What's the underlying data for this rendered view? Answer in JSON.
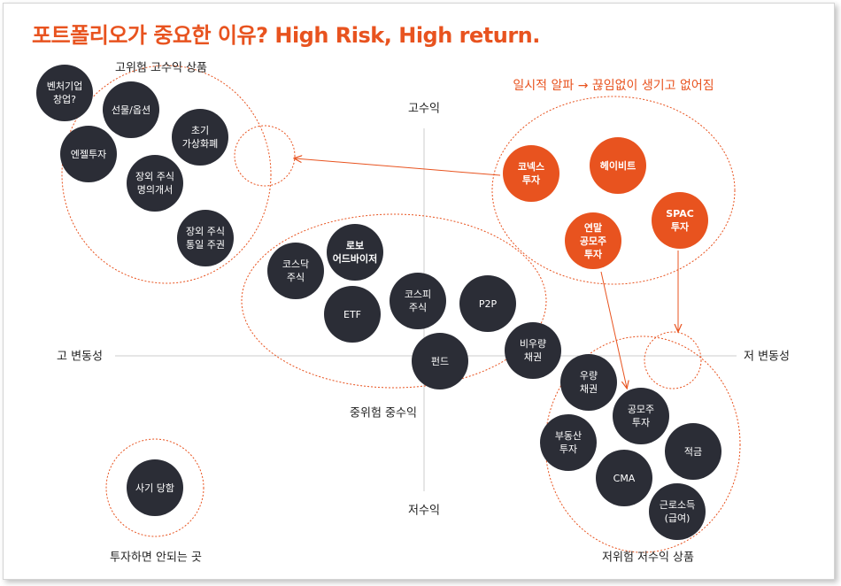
{
  "title": "포트폴리오가 중요한 이유? High Risk, High return.",
  "axes": {
    "top": "고수익",
    "bottom": "저수익",
    "left": "고 변동성",
    "right": "저 변동성"
  },
  "groups": {
    "high_risk": "고위험 고수익 상품",
    "mid_risk": "중위험 중수익",
    "low_risk": "저위험 저수익 상품",
    "no_invest": "투자하면 안되는 곳",
    "alpha": "일시적 알파 → 끊임없이 생기고 없어짐"
  },
  "nodes": {
    "venture": "벤처기업\n창업?",
    "futures": "선물/옵션",
    "angel": "엔젤투자",
    "crypto": "초기\n가상화폐",
    "otc_name": "장외 주식\n명의개서",
    "otc_unified": "장외 주식\n통일 주권",
    "kosdaq": "코스닥\n주식",
    "robo": "로보\n어드바이저",
    "etf": "ETF",
    "kospi": "코스피\n주식",
    "p2p": "P2P",
    "fund": "펀드",
    "junk_bond": "비우량\n채권",
    "konex": "코넥스\n투자",
    "heybit": "헤이비트",
    "spac": "SPAC\n투자",
    "annual_ipo": "연말\n공모주\n투자",
    "good_bond": "우량\n채권",
    "ipo": "공모주\n투자",
    "real_estate": "부동산\n투자",
    "savings": "적금",
    "cma": "CMA",
    "labor": "근로소득\n(급여)",
    "fraud": "사기 당함"
  },
  "colors": {
    "accent": "#e8531f",
    "node": "#2b2d36"
  }
}
